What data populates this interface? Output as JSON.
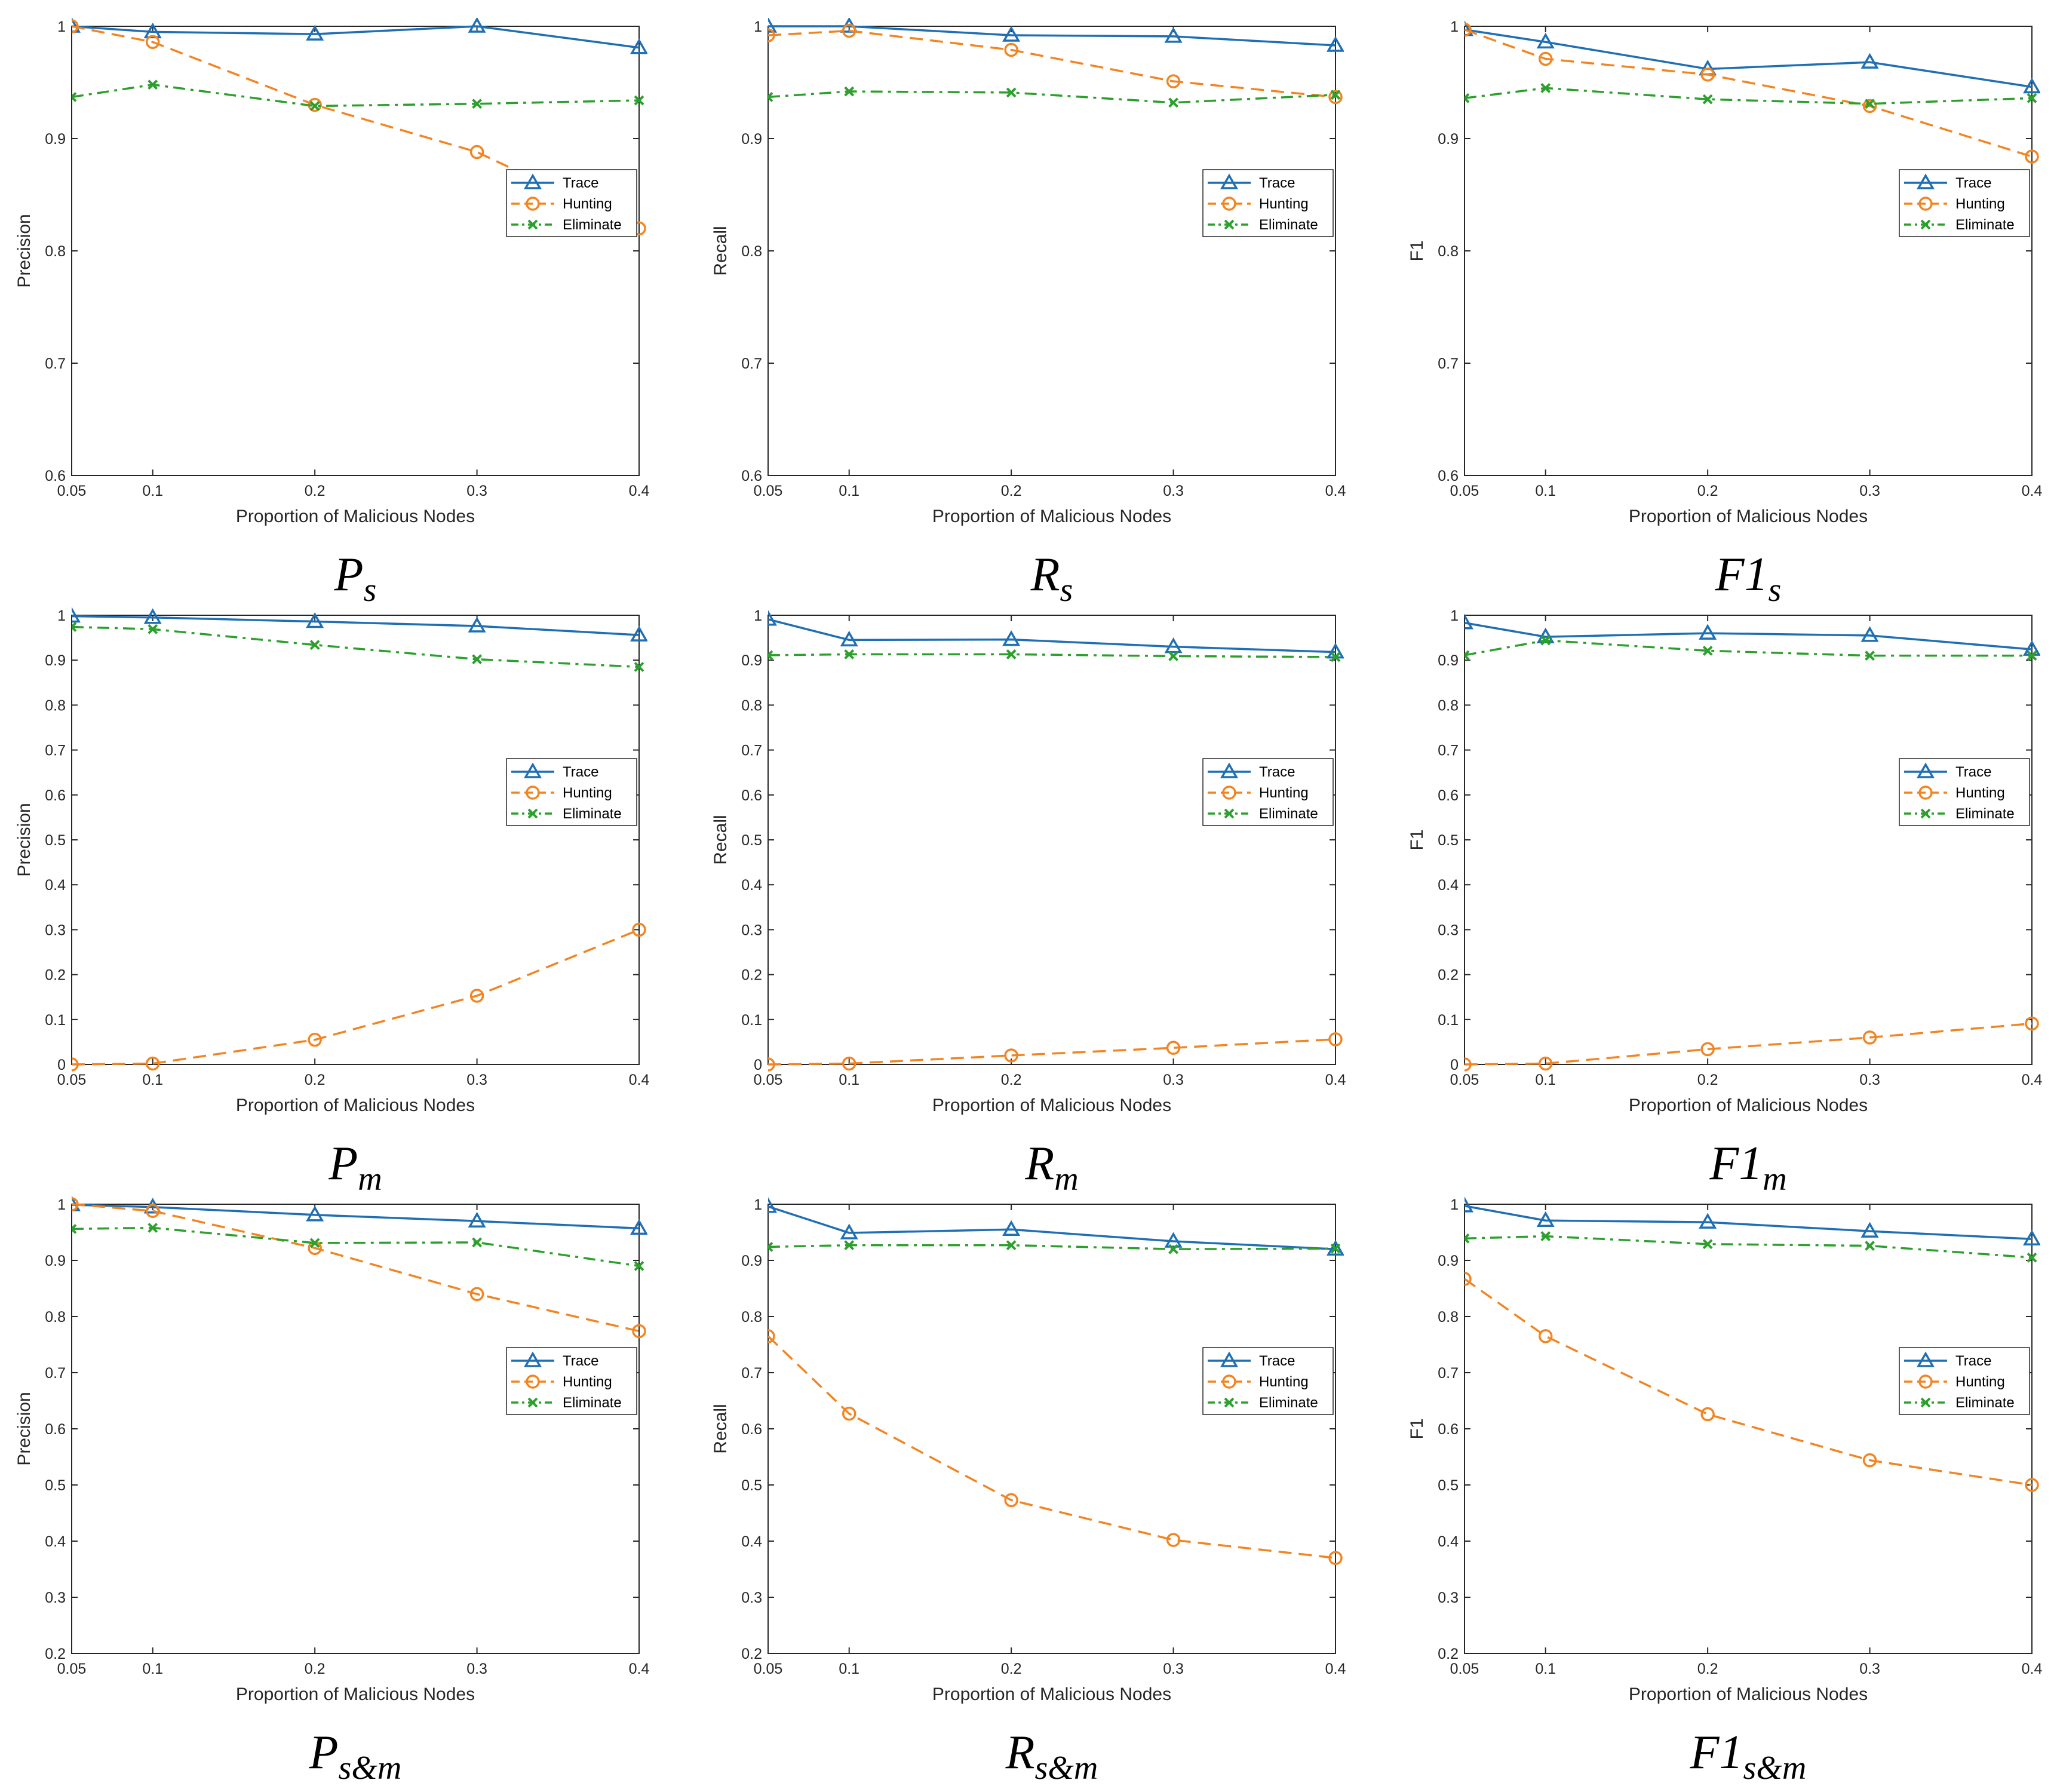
{
  "figure": {
    "series_colors": {
      "Trace": "#1f6fb4",
      "Hunting": "#f28522",
      "Eliminate": "#2ca02c"
    }
  },
  "chart_data": [
    {
      "type": "line",
      "caption": {
        "main": "P",
        "sub": "s"
      },
      "x": [
        0.05,
        0.1,
        0.2,
        0.3,
        0.4
      ],
      "xticks": [
        "0.05",
        "0.1",
        "0.2",
        "0.3",
        "0.4"
      ],
      "xlabel": "Proportion of Malicious Nodes",
      "ylabel": "Precision",
      "ylim": [
        0.6,
        1
      ],
      "yticks": [
        "0.6",
        "0.7",
        "0.8",
        "0.9",
        "1"
      ],
      "legend": "right",
      "series": [
        {
          "name": "Trace",
          "values": [
            1.0,
            0.995,
            0.993,
            1.0,
            0.981
          ]
        },
        {
          "name": "Hunting",
          "values": [
            1.0,
            0.986,
            0.93,
            0.888,
            0.82
          ]
        },
        {
          "name": "Eliminate",
          "values": [
            0.937,
            0.948,
            0.929,
            0.931,
            0.934
          ]
        }
      ]
    },
    {
      "type": "line",
      "caption": {
        "main": "R",
        "sub": "s"
      },
      "x": [
        0.05,
        0.1,
        0.2,
        0.3,
        0.4
      ],
      "xticks": [
        "0.05",
        "0.1",
        "0.2",
        "0.3",
        "0.4"
      ],
      "xlabel": "Proportion of Malicious Nodes",
      "ylabel": "Recall",
      "ylim": [
        0.6,
        1
      ],
      "yticks": [
        "0.6",
        "0.7",
        "0.8",
        "0.9",
        "1"
      ],
      "legend": "right",
      "series": [
        {
          "name": "Trace",
          "values": [
            1.0,
            1.0,
            0.992,
            0.991,
            0.983
          ]
        },
        {
          "name": "Hunting",
          "values": [
            0.992,
            0.996,
            0.979,
            0.951,
            0.937
          ]
        },
        {
          "name": "Eliminate",
          "values": [
            0.937,
            0.942,
            0.941,
            0.932,
            0.939
          ]
        }
      ]
    },
    {
      "type": "line",
      "caption": {
        "main": "F1",
        "sub": "s"
      },
      "x": [
        0.05,
        0.1,
        0.2,
        0.3,
        0.4
      ],
      "xticks": [
        "0.05",
        "0.1",
        "0.2",
        "0.3",
        "0.4"
      ],
      "xlabel": "Proportion of Malicious Nodes",
      "ylabel": "F1",
      "ylim": [
        0.6,
        1
      ],
      "yticks": [
        "0.6",
        "0.7",
        "0.8",
        "0.9",
        "1"
      ],
      "legend": "right",
      "series": [
        {
          "name": "Trace",
          "values": [
            0.997,
            0.986,
            0.962,
            0.968,
            0.946
          ]
        },
        {
          "name": "Hunting",
          "values": [
            0.997,
            0.971,
            0.957,
            0.929,
            0.884
          ]
        },
        {
          "name": "Eliminate",
          "values": [
            0.936,
            0.945,
            0.935,
            0.931,
            0.936
          ]
        }
      ]
    },
    {
      "type": "line",
      "caption": {
        "main": "P",
        "sub": "m"
      },
      "x": [
        0.05,
        0.1,
        0.2,
        0.3,
        0.4
      ],
      "xticks": [
        "0.05",
        "0.1",
        "0.2",
        "0.3",
        "0.4"
      ],
      "xlabel": "Proportion of Malicious Nodes",
      "ylabel": "Precision",
      "ylim": [
        0,
        1
      ],
      "yticks": [
        "0",
        "0.1",
        "0.2",
        "0.3",
        "0.4",
        "0.5",
        "0.6",
        "0.7",
        "0.8",
        "0.9",
        "1"
      ],
      "legend": "right",
      "series": [
        {
          "name": "Trace",
          "values": [
            0.998,
            0.995,
            0.986,
            0.976,
            0.956
          ]
        },
        {
          "name": "Hunting",
          "values": [
            0.0,
            0.002,
            0.055,
            0.153,
            0.3
          ]
        },
        {
          "name": "Eliminate",
          "values": [
            0.974,
            0.969,
            0.934,
            0.902,
            0.885
          ]
        }
      ]
    },
    {
      "type": "line",
      "caption": {
        "main": "R",
        "sub": "m"
      },
      "x": [
        0.05,
        0.1,
        0.2,
        0.3,
        0.4
      ],
      "xticks": [
        "0.05",
        "0.1",
        "0.2",
        "0.3",
        "0.4"
      ],
      "xlabel": "Proportion of Malicious Nodes",
      "ylabel": "Recall",
      "ylim": [
        0,
        1
      ],
      "yticks": [
        "0",
        "0.1",
        "0.2",
        "0.3",
        "0.4",
        "0.5",
        "0.6",
        "0.7",
        "0.8",
        "0.9",
        "1"
      ],
      "legend": "right",
      "series": [
        {
          "name": "Trace",
          "values": [
            0.991,
            0.945,
            0.946,
            0.93,
            0.918
          ]
        },
        {
          "name": "Hunting",
          "values": [
            0.0,
            0.002,
            0.02,
            0.037,
            0.056
          ]
        },
        {
          "name": "Eliminate",
          "values": [
            0.911,
            0.913,
            0.913,
            0.909,
            0.907
          ]
        }
      ]
    },
    {
      "type": "line",
      "caption": {
        "main": "F1",
        "sub": "m"
      },
      "x": [
        0.05,
        0.1,
        0.2,
        0.3,
        0.4
      ],
      "xticks": [
        "0.05",
        "0.1",
        "0.2",
        "0.3",
        "0.4"
      ],
      "xlabel": "Proportion of Malicious Nodes",
      "ylabel": "F1",
      "ylim": [
        0,
        1
      ],
      "yticks": [
        "0",
        "0.1",
        "0.2",
        "0.3",
        "0.4",
        "0.5",
        "0.6",
        "0.7",
        "0.8",
        "0.9",
        "1"
      ],
      "legend": "right",
      "series": [
        {
          "name": "Trace",
          "values": [
            0.983,
            0.952,
            0.96,
            0.955,
            0.924
          ]
        },
        {
          "name": "Hunting",
          "values": [
            0.0,
            0.002,
            0.034,
            0.06,
            0.091
          ]
        },
        {
          "name": "Eliminate",
          "values": [
            0.911,
            0.944,
            0.921,
            0.91,
            0.91
          ]
        }
      ]
    },
    {
      "type": "line",
      "caption": {
        "main": "P",
        "sub": "s&m"
      },
      "x": [
        0.05,
        0.1,
        0.2,
        0.3,
        0.4
      ],
      "xticks": [
        "0.05",
        "0.1",
        "0.2",
        "0.3",
        "0.4"
      ],
      "xlabel": "Proportion of Malicious Nodes",
      "ylabel": "Precision",
      "ylim": [
        0.2,
        1
      ],
      "yticks": [
        "0.2",
        "0.3",
        "0.4",
        "0.5",
        "0.6",
        "0.7",
        "0.8",
        "0.9",
        "1"
      ],
      "legend": "right",
      "series": [
        {
          "name": "Trace",
          "values": [
            0.999,
            0.995,
            0.981,
            0.97,
            0.957
          ]
        },
        {
          "name": "Hunting",
          "values": [
            1.0,
            0.988,
            0.922,
            0.84,
            0.774
          ]
        },
        {
          "name": "Eliminate",
          "values": [
            0.956,
            0.958,
            0.931,
            0.932,
            0.89
          ]
        }
      ]
    },
    {
      "type": "line",
      "caption": {
        "main": "R",
        "sub": "s&m"
      },
      "x": [
        0.05,
        0.1,
        0.2,
        0.3,
        0.4
      ],
      "xticks": [
        "0.05",
        "0.1",
        "0.2",
        "0.3",
        "0.4"
      ],
      "xlabel": "Proportion of Malicious Nodes",
      "ylabel": "Recall",
      "ylim": [
        0.2,
        1
      ],
      "yticks": [
        "0.2",
        "0.3",
        "0.4",
        "0.5",
        "0.6",
        "0.7",
        "0.8",
        "0.9",
        "1"
      ],
      "legend": "right",
      "series": [
        {
          "name": "Trace",
          "values": [
            0.996,
            0.949,
            0.955,
            0.934,
            0.92
          ]
        },
        {
          "name": "Hunting",
          "values": [
            0.765,
            0.627,
            0.473,
            0.402,
            0.37
          ]
        },
        {
          "name": "Eliminate",
          "values": [
            0.924,
            0.927,
            0.927,
            0.92,
            0.921
          ]
        }
      ]
    },
    {
      "type": "line",
      "caption": {
        "main": "F1",
        "sub": "s&m"
      },
      "x": [
        0.05,
        0.1,
        0.2,
        0.3,
        0.4
      ],
      "xticks": [
        "0.05",
        "0.1",
        "0.2",
        "0.3",
        "0.4"
      ],
      "xlabel": "Proportion of Malicious Nodes",
      "ylabel": "F1",
      "ylim": [
        0.2,
        1
      ],
      "yticks": [
        "0.2",
        "0.3",
        "0.4",
        "0.5",
        "0.6",
        "0.7",
        "0.8",
        "0.9",
        "1"
      ],
      "legend": "right",
      "series": [
        {
          "name": "Trace",
          "values": [
            0.997,
            0.971,
            0.968,
            0.952,
            0.938
          ]
        },
        {
          "name": "Hunting",
          "values": [
            0.867,
            0.765,
            0.626,
            0.544,
            0.5
          ]
        },
        {
          "name": "Eliminate",
          "values": [
            0.939,
            0.943,
            0.929,
            0.926,
            0.905
          ]
        }
      ]
    }
  ]
}
